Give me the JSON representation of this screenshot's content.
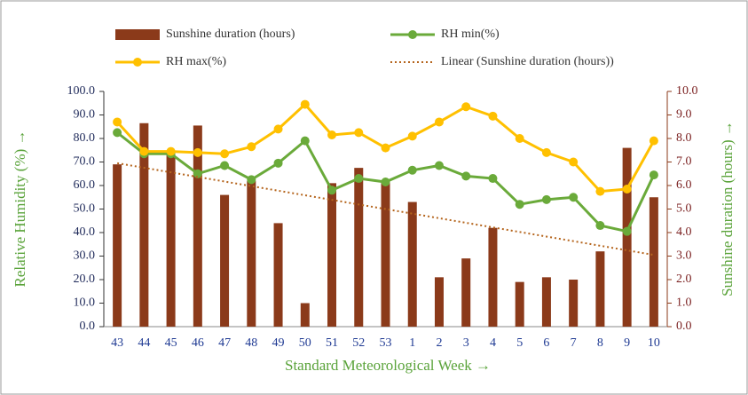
{
  "chart_data": {
    "type": "combo",
    "x_label": "Standard Meteorological Week →",
    "y_label": "Relative Humidity (%) →",
    "y2_label": "Sunshine duration (hours) →",
    "categories": [
      "43",
      "44",
      "45",
      "46",
      "47",
      "48",
      "49",
      "50",
      "51",
      "52",
      "53",
      "1",
      "2",
      "3",
      "4",
      "5",
      "6",
      "7",
      "8",
      "9",
      "10"
    ],
    "series": [
      {
        "name": "Sunshine duration (hours)",
        "type": "bar",
        "axis": "y2",
        "color": "#8b3a1a",
        "values": [
          6.9,
          8.65,
          7.3,
          8.55,
          5.6,
          6.2,
          4.4,
          1.0,
          6.1,
          6.75,
          6.2,
          5.3,
          2.1,
          2.9,
          4.2,
          1.9,
          2.1,
          2.0,
          3.2,
          7.6,
          5.5
        ]
      },
      {
        "name": "RH min(%)",
        "type": "line",
        "color": "#6aaa3a",
        "values": [
          82.5,
          73.5,
          73.5,
          65,
          68.5,
          62.5,
          69.5,
          79,
          58,
          63,
          61.5,
          66.5,
          68.5,
          64,
          63,
          52,
          54,
          55,
          43,
          40.5,
          64.5
        ]
      },
      {
        "name": "RH max(%)",
        "type": "line",
        "color": "#ffc000",
        "values": [
          87,
          74.5,
          74.5,
          74,
          73.5,
          76.5,
          84,
          94.5,
          81.5,
          82.5,
          76,
          81,
          87,
          93.5,
          89.5,
          80,
          74,
          70,
          57.5,
          58.5,
          79
        ]
      }
    ],
    "trendline": {
      "name": "Linear (Sunshine duration (hours))",
      "axis": "y2",
      "color": "#b5651d",
      "values": [
        6.95,
        3.05
      ]
    },
    "ylim": [
      0,
      100
    ],
    "yticks": [
      {
        "value": 0,
        "label": "0.0"
      },
      {
        "value": 10,
        "label": "10.0"
      },
      {
        "value": 20,
        "label": "20.0"
      },
      {
        "value": 30,
        "label": "30.0"
      },
      {
        "value": 40,
        "label": "40.0"
      },
      {
        "value": 50,
        "label": "50.0"
      },
      {
        "value": 60,
        "label": "60.0"
      },
      {
        "value": 70,
        "label": "70.0"
      },
      {
        "value": 80,
        "label": "80.0"
      },
      {
        "value": 90,
        "label": "90.0"
      },
      {
        "value": 100,
        "label": "100.0"
      }
    ],
    "y2lim": [
      0,
      10
    ],
    "y2ticks": [
      {
        "value": 0,
        "label": "0.0"
      },
      {
        "value": 1,
        "label": "1.0"
      },
      {
        "value": 2,
        "label": "2.0"
      },
      {
        "value": 3,
        "label": "3.0"
      },
      {
        "value": 4,
        "label": "4.0"
      },
      {
        "value": 5,
        "label": "5.0"
      },
      {
        "value": 6,
        "label": "6.0"
      },
      {
        "value": 7,
        "label": "7.0"
      },
      {
        "value": 8,
        "label": "8.0"
      },
      {
        "value": 9,
        "label": "9.0"
      },
      {
        "value": 10,
        "label": "10.0"
      }
    ]
  }
}
